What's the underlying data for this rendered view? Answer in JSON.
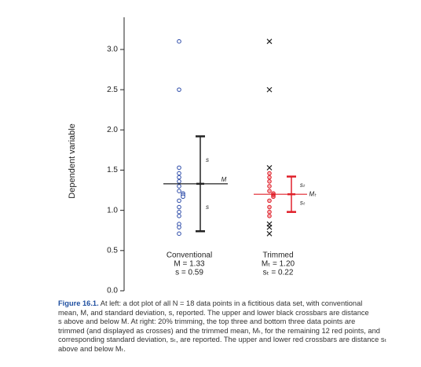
{
  "chart_data": {
    "type": "scatter",
    "y_label": "Dependent variable",
    "ylim": [
      0,
      3.4
    ],
    "yticks": [
      {
        "value": 0,
        "label": "0.0"
      },
      0.5,
      {
        "value": 1,
        "label": "1.0"
      },
      1.5,
      {
        "value": 2,
        "label": "2.0"
      },
      2.5,
      {
        "value": 3,
        "label": "3.0"
      }
    ],
    "series": [
      {
        "name": "Conventional",
        "color": "#2b4aa8",
        "marker": "circle",
        "values": [
          3.1,
          2.5,
          1.53,
          1.46,
          1.41,
          1.36,
          1.3,
          1.24,
          1.21,
          1.19,
          1.17,
          1.12,
          1.04,
          0.98,
          0.93,
          0.83,
          0.79,
          0.71
        ],
        "stats": {
          "mean": 1.33,
          "sd": 0.59,
          "mean_label": "M = 1.33",
          "sd_label": "s = 0.59",
          "mean_symbol": "M",
          "sd_symbol": "s",
          "color": "#222222"
        }
      },
      {
        "name": "Trimmed",
        "color": "#e0202a",
        "marker": "circle",
        "values": [
          1.46,
          1.41,
          1.36,
          1.3,
          1.24,
          1.21,
          1.19,
          1.17,
          1.12,
          1.04,
          0.98,
          0.93
        ],
        "stats": {
          "mean": 1.2,
          "sd": 0.22,
          "mean_label": "Mₜ = 1.20",
          "sd_label": "sₜ = 0.22",
          "mean_symbol": "Mₜ",
          "sd_symbol": "sₜ",
          "color": "#e0202a"
        }
      },
      {
        "color": "#222222",
        "marker": "cross",
        "group": 1,
        "values": [
          3.1,
          2.5,
          1.53,
          0.83,
          0.79,
          0.71
        ]
      }
    ]
  },
  "caption": {
    "label": "Figure 16.1.",
    "lines": [
      " At left: a dot plot of all N = 18 data points in a fictitious data set, with conventional",
      "mean, M, and standard deviation, s, reported. The upper and lower black crossbars are distance",
      "s above and below M. At right: 20% trimming, the top three and bottom three data points are",
      "trimmed (and displayed as crosses) and the trimmed mean, Mₜ, for the remaining 12 red points, and",
      "corresponding standard deviation, sₜ, are reported. The upper and lower red crossbars are distance sₜ",
      "above and below Mₜ."
    ]
  }
}
